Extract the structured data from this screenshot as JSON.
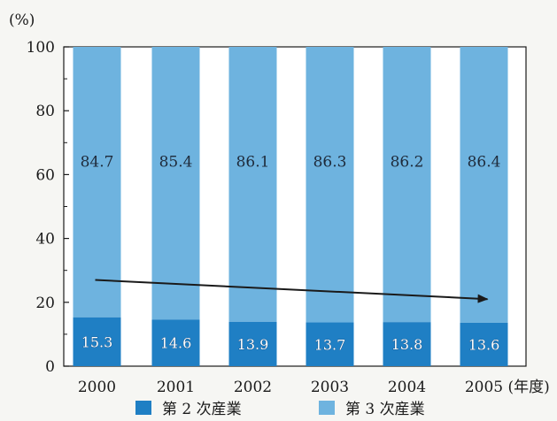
{
  "chart_data": {
    "type": "bar",
    "stacked": true,
    "categories": [
      "2000",
      "2001",
      "2002",
      "2003",
      "2004",
      "2005"
    ],
    "x_unit": "(年度)",
    "y_unit": "(%)",
    "ylim": [
      0,
      100
    ],
    "yticks": [
      0,
      20,
      40,
      60,
      80,
      100
    ],
    "grid": false,
    "legend_position": "bottom",
    "series": [
      {
        "name": "第 2 次産業",
        "values": [
          15.3,
          14.6,
          13.9,
          13.7,
          13.8,
          13.6
        ],
        "color": "#1f7fc4"
      },
      {
        "name": "第 3 次産業",
        "values": [
          84.7,
          85.4,
          86.1,
          86.3,
          86.2,
          86.4
        ],
        "color": "#6eb3df"
      }
    ],
    "annotations": [
      {
        "type": "trend-arrow",
        "from_category": "2000",
        "to_category": "2005",
        "from_value": 27,
        "to_value": 21
      }
    ]
  }
}
